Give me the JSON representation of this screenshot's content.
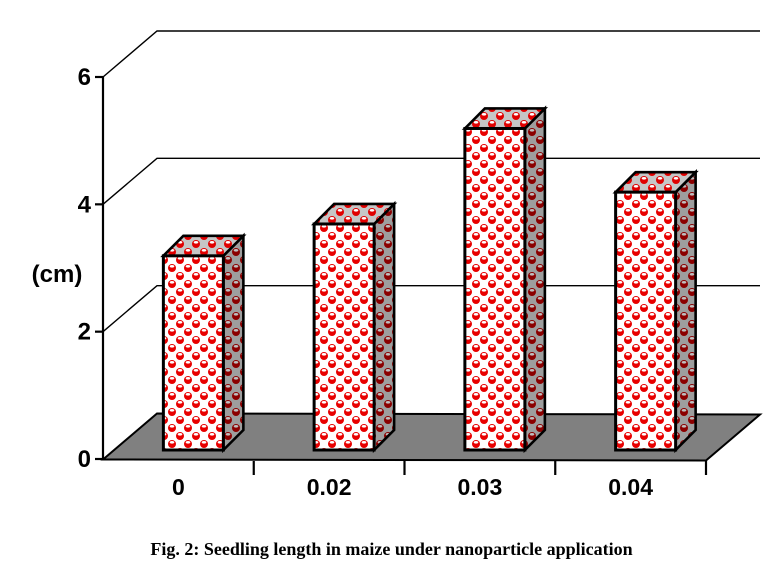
{
  "figure": {
    "caption": "Fig. 2: Seedling length in maize under nanoparticle application"
  },
  "chart_data": {
    "type": "bar",
    "projection": "3d",
    "title": "",
    "xlabel": "",
    "ylabel": "(cm)",
    "categories": [
      "0",
      "0.02",
      "0.03",
      "0.04"
    ],
    "values": [
      3.05,
      3.55,
      5.05,
      4.05
    ],
    "yticks": [
      0,
      2,
      4,
      6
    ],
    "ylim": [
      0,
      6
    ],
    "grid": true,
    "legend": false,
    "bar_pattern": "red-spheres-checkerboard",
    "colors": {
      "bar_front_bg": "#ffffff",
      "bar_front_ball": "#e80000",
      "bar_front_highlight": "#ffffff",
      "bar_top_bg": "#c6c6c6",
      "bar_top_ball": "#e00000",
      "bar_top_highlight": "#ffffff",
      "bar_side_bg": "#9e9e9e",
      "bar_side_ball": "#8b0000",
      "bar_side_highlight": "#bfbfbf",
      "floor": "#808080",
      "line": "#000000",
      "text": "#000000",
      "background": "#ffffff"
    }
  }
}
